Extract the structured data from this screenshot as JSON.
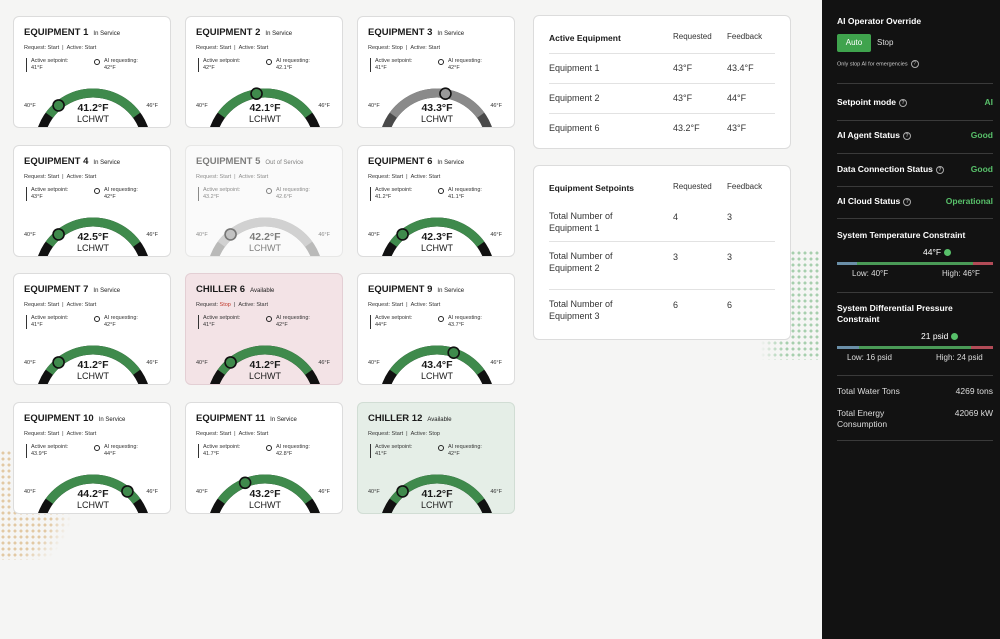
{
  "cards": [
    {
      "title": "EQUIPMENT 1",
      "status": "In Service",
      "request_label": "Request:",
      "request_value": "Start",
      "active_label": "Active:",
      "active_value": "Start",
      "setpoint_label": "Active setpoint:",
      "setpoint_value": "41°F",
      "ai_label": "AI requesting:",
      "ai_value": "42°F",
      "low": "40°F",
      "high": "46°F",
      "value": "41.2°F",
      "unit": "LCHWT",
      "fill_fraction": 0.28,
      "marker_fraction": 0.28,
      "variant": "normal"
    },
    {
      "title": "EQUIPMENT 2",
      "status": "In Service",
      "request_label": "Request:",
      "request_value": "Start",
      "active_label": "Active:",
      "active_value": "Start",
      "setpoint_label": "Active setpoint:",
      "setpoint_value": "42°F",
      "ai_label": "AI requesting:",
      "ai_value": "42.1°F",
      "low": "40°F",
      "high": "46°F",
      "value": "42.1°F",
      "unit": "LCHWT",
      "fill_fraction": 0.45,
      "marker_fraction": 0.45,
      "variant": "normal"
    },
    {
      "title": "EQUIPMENT 3",
      "status": "In Service",
      "request_label": "Request:",
      "request_value": "Stop",
      "active_label": "Active:",
      "active_value": "Start",
      "setpoint_label": "Active setpoint:",
      "setpoint_value": "41°F",
      "ai_label": "AI requesting:",
      "ai_value": "42°F",
      "low": "40°F",
      "high": "46°F",
      "value": "43.3°F",
      "unit": "LCHWT",
      "fill_fraction": 0.0,
      "marker_fraction": 0.55,
      "variant": "gray"
    },
    {
      "title": "EQUIPMENT 4",
      "status": "In Service",
      "request_label": "Request:",
      "request_value": "Start",
      "active_label": "Active:",
      "active_value": "Start",
      "setpoint_label": "Active setpoint:",
      "setpoint_value": "43°F",
      "ai_label": "AI requesting:",
      "ai_value": "42°F",
      "low": "40°F",
      "high": "46°F",
      "value": "42.5°F",
      "unit": "LCHWT",
      "fill_fraction": 0.28,
      "marker_fraction": 0.28,
      "variant": "normal"
    },
    {
      "title": "EQUIPMENT 5",
      "status": "Out of Service",
      "request_label": "Request:",
      "request_value": "Start",
      "active_label": "Active:",
      "active_value": "Start",
      "setpoint_label": "Active setpoint:",
      "setpoint_value": "43.2°F",
      "ai_label": "AI requesting:",
      "ai_value": "42.6°F",
      "low": "40°F",
      "high": "46°F",
      "value": "42.2°F",
      "unit": "LCHWT",
      "fill_fraction": 0.0,
      "marker_fraction": 0.28,
      "variant": "faded"
    },
    {
      "title": "EQUIPMENT 6",
      "status": "In Service",
      "request_label": "Request:",
      "request_value": "Start",
      "active_label": "Active:",
      "active_value": "Start",
      "setpoint_label": "Active setpoint:",
      "setpoint_value": "41.2°F",
      "ai_label": "AI requesting:",
      "ai_value": "41.1°F",
      "low": "40°F",
      "high": "46°F",
      "value": "42.3°F",
      "unit": "LCHWT",
      "fill_fraction": 0.28,
      "marker_fraction": 0.28,
      "variant": "normal"
    },
    {
      "title": "EQUIPMENT 7",
      "status": "In Service",
      "request_label": "Request:",
      "request_value": "Start",
      "active_label": "Active:",
      "active_value": "Start",
      "setpoint_label": "Active setpoint:",
      "setpoint_value": "41°F",
      "ai_label": "AI requesting:",
      "ai_value": "42°F",
      "low": "40°F",
      "high": "46°F",
      "value": "41.2°F",
      "unit": "LCHWT",
      "fill_fraction": 0.28,
      "marker_fraction": 0.28,
      "variant": "normal"
    },
    {
      "title": "CHILLER 6",
      "status": "Available",
      "request_label": "Request:",
      "request_value": "Stop",
      "active_label": "Active:",
      "active_value": "Start",
      "setpoint_label": "Active setpoint:",
      "setpoint_value": "41°F",
      "ai_label": "AI requesting:",
      "ai_value": "42°F",
      "low": "40°F",
      "high": "46°F",
      "value": "41.2°F",
      "unit": "LCHWT",
      "fill_fraction": 0.28,
      "marker_fraction": 0.28,
      "variant": "pink"
    },
    {
      "title": "EQUIPMENT 9",
      "status": "In Service",
      "request_label": "Request:",
      "request_value": "Start",
      "active_label": "Active:",
      "active_value": "Start",
      "setpoint_label": "Active setpoint:",
      "setpoint_value": "44°F",
      "ai_label": "AI requesting:",
      "ai_value": "43.7°F",
      "low": "40°F",
      "high": "46°F",
      "value": "43.4°F",
      "unit": "LCHWT",
      "fill_fraction": 0.6,
      "marker_fraction": 0.6,
      "variant": "normal"
    },
    {
      "title": "EQUIPMENT 10",
      "status": "In Service",
      "request_label": "Request:",
      "request_value": "Start",
      "active_label": "Active:",
      "active_value": "Start",
      "setpoint_label": "Active setpoint:",
      "setpoint_value": "43.9°F",
      "ai_label": "AI requesting:",
      "ai_value": "44°F",
      "low": "40°F",
      "high": "46°F",
      "value": "44.2°F",
      "unit": "LCHWT",
      "fill_fraction": 0.72,
      "marker_fraction": 0.72,
      "variant": "normal"
    },
    {
      "title": "EQUIPMENT 11",
      "status": "In Service",
      "request_label": "Request:",
      "request_value": "Start",
      "active_label": "Active:",
      "active_value": "Start",
      "setpoint_label": "Active setpoint:",
      "setpoint_value": "41.7°F",
      "ai_label": "AI requesting:",
      "ai_value": "42.8°F",
      "low": "40°F",
      "high": "46°F",
      "value": "43.2°F",
      "unit": "LCHWT",
      "fill_fraction": 0.38,
      "marker_fraction": 0.38,
      "variant": "normal"
    },
    {
      "title": "CHILLER 12",
      "status": "Available",
      "request_label": "Request:",
      "request_value": "Start",
      "active_label": "Active:",
      "active_value": "Stop",
      "setpoint_label": "Active setpoint:",
      "setpoint_value": "41°F",
      "ai_label": "AI requesting:",
      "ai_value": "42°F",
      "low": "40°F",
      "high": "46°F",
      "value": "41.2°F",
      "unit": "LCHWT",
      "fill_fraction": 0.28,
      "marker_fraction": 0.28,
      "variant": "mint"
    }
  ],
  "active_table": {
    "title": "Active Equipment",
    "col_requested": "Requested",
    "col_feedback": "Feedback",
    "rows": [
      {
        "name": "Equipment 1",
        "requested": "43°F",
        "feedback": "43.4°F"
      },
      {
        "name": "Equipment 2",
        "requested": "43°F",
        "feedback": "44°F"
      },
      {
        "name": "Equipment 6",
        "requested": "43.2°F",
        "feedback": "43°F"
      }
    ]
  },
  "setpoints_table": {
    "title": "Equipment Setpoints",
    "col_requested": "Requested",
    "col_feedback": "Feedback",
    "rows": [
      {
        "name": "Total Number of Equipment 1",
        "requested": "4",
        "feedback": "3"
      },
      {
        "name": "Total Number of Equipment 2",
        "requested": "3",
        "feedback": "3"
      },
      {
        "name": "Total Number of Equipment 3",
        "requested": "6",
        "feedback": "6"
      }
    ]
  },
  "sidebar": {
    "override_title": "AI Operator Override",
    "auto_label": "Auto",
    "stop_label": "Stop",
    "note": "Only stop AI for emergencies",
    "help_glyph": "?",
    "rows": [
      {
        "label": "Setpoint mode",
        "value": "AI"
      },
      {
        "label": "AI Agent Status",
        "value": "Good"
      },
      {
        "label": "Data Connection Status",
        "value": "Good"
      },
      {
        "label": "AI Cloud Status",
        "value": "Operational"
      }
    ],
    "temp": {
      "title": "System Temperature Constraint",
      "value": "44°F",
      "low": "Low: 40°F",
      "high": "High: 46°F",
      "marker_fraction": 0.66
    },
    "pressure": {
      "title": "System Differential Pressure Constraint",
      "value": "21 psid",
      "low": "Low: 16 psid",
      "high": "High: 24 psid",
      "marker_fraction": 0.62
    },
    "totals": [
      {
        "label": "Total Water Tons",
        "value": "4269 tons"
      },
      {
        "label": "Total Energy Consumption",
        "value": "42069 kW"
      }
    ]
  },
  "colors": {
    "accent_green": "#3fa34d",
    "gauge_green": "#3f8a4c",
    "stop_red": "#c0392b"
  }
}
